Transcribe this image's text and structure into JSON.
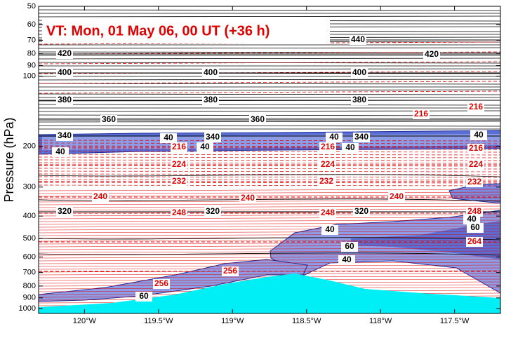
{
  "chart_data": {
    "type": "cross-section",
    "title": "VT:  Mon, 01 May 06, 00 UT (+36 h)",
    "y_label": "Pressure (hPa)",
    "y_scale": "log",
    "ylim": [
      1050,
      50
    ],
    "yticks": [
      50,
      60,
      70,
      80,
      90,
      100,
      200,
      300,
      400,
      500,
      600,
      700,
      800,
      900,
      1000
    ],
    "xlim": [
      -120.31,
      -117.19
    ],
    "xticks": [
      {
        "value": -120,
        "label": "120°W"
      },
      {
        "value": -119.5,
        "label": "119.5°W"
      },
      {
        "value": -119,
        "label": "119°W"
      },
      {
        "value": -118.5,
        "label": "118.5°W"
      },
      {
        "value": -118,
        "label": "118°W"
      },
      {
        "value": -117.5,
        "label": "117.5°W"
      }
    ],
    "theta_levels": [
      440,
      420,
      400,
      380,
      360,
      340,
      320
    ],
    "theta_color": "#000000",
    "temperature_levels": [
      216,
      224,
      232,
      240,
      248,
      256,
      264
    ],
    "temperature_color": "#e00000",
    "wind_levels": [
      40,
      60
    ],
    "wind_color": "#5566d8",
    "terrain_color": "#00eef6"
  }
}
